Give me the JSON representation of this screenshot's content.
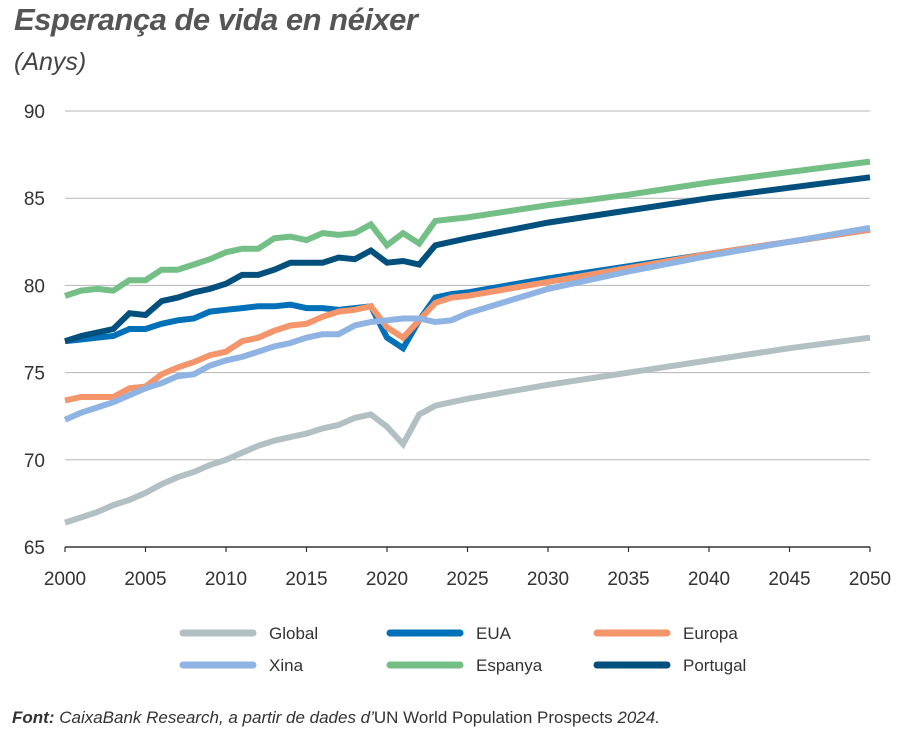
{
  "chart_data": {
    "type": "line",
    "title": "Esperança de vida en néixer",
    "subtitle": "(Anys)",
    "xlabel": "",
    "ylabel": "Anys",
    "xlim": [
      2000,
      2050
    ],
    "ylim": [
      65,
      90
    ],
    "grid": true,
    "legend_position": "bottom",
    "xticks": [
      "2000",
      "2005",
      "2010",
      "2015",
      "2020",
      "2025",
      "2030",
      "2035",
      "2040",
      "2045",
      "2050"
    ],
    "yticks": [
      "65",
      "70",
      "75",
      "80",
      "85",
      "90"
    ],
    "x": [
      2000,
      2001,
      2002,
      2003,
      2004,
      2005,
      2006,
      2007,
      2008,
      2009,
      2010,
      2011,
      2012,
      2013,
      2014,
      2015,
      2016,
      2017,
      2018,
      2019,
      2020,
      2021,
      2022,
      2023,
      2024,
      2025,
      2030,
      2035,
      2040,
      2045,
      2050
    ],
    "series": [
      {
        "name": "Global",
        "color": "#b3c0c3",
        "values": [
          66.4,
          66.7,
          67.0,
          67.4,
          67.7,
          68.1,
          68.6,
          69.0,
          69.3,
          69.7,
          70.0,
          70.4,
          70.8,
          71.1,
          71.3,
          71.5,
          71.8,
          72.0,
          72.4,
          72.6,
          71.9,
          70.9,
          72.6,
          73.1,
          73.3,
          73.5,
          74.3,
          75.0,
          75.7,
          76.4,
          77.0
        ]
      },
      {
        "name": "EUA",
        "color": "#0070b8",
        "values": [
          76.8,
          76.9,
          77.0,
          77.1,
          77.5,
          77.5,
          77.8,
          78.0,
          78.1,
          78.5,
          78.6,
          78.7,
          78.8,
          78.8,
          78.9,
          78.7,
          78.7,
          78.6,
          78.7,
          78.8,
          77.0,
          76.4,
          78.0,
          79.3,
          79.5,
          79.6,
          80.4,
          81.1,
          81.8,
          82.5,
          83.2
        ]
      },
      {
        "name": "Europa",
        "color": "#f4956b",
        "values": [
          73.4,
          73.6,
          73.6,
          73.6,
          74.1,
          74.2,
          74.9,
          75.3,
          75.6,
          76.0,
          76.2,
          76.8,
          77.0,
          77.4,
          77.7,
          77.8,
          78.2,
          78.5,
          78.6,
          78.8,
          77.6,
          77.0,
          78.0,
          79.0,
          79.3,
          79.4,
          80.2,
          81.0,
          81.8,
          82.5,
          83.2
        ]
      },
      {
        "name": "Xina",
        "color": "#8fb3e3",
        "values": [
          72.3,
          72.7,
          73.0,
          73.3,
          73.7,
          74.1,
          74.4,
          74.8,
          74.9,
          75.4,
          75.7,
          75.9,
          76.2,
          76.5,
          76.7,
          77.0,
          77.2,
          77.2,
          77.7,
          77.9,
          78.0,
          78.1,
          78.1,
          77.9,
          78.0,
          78.4,
          79.8,
          80.8,
          81.7,
          82.5,
          83.3
        ]
      },
      {
        "name": "Espanya",
        "color": "#74bf85",
        "values": [
          79.4,
          79.7,
          79.8,
          79.7,
          80.3,
          80.3,
          80.9,
          80.9,
          81.2,
          81.5,
          81.9,
          82.1,
          82.1,
          82.7,
          82.8,
          82.6,
          83.0,
          82.9,
          83.0,
          83.5,
          82.3,
          83.0,
          82.4,
          83.7,
          83.8,
          83.9,
          84.6,
          85.2,
          85.9,
          86.5,
          87.1
        ]
      },
      {
        "name": "Portugal",
        "color": "#004f7d",
        "values": [
          76.8,
          77.1,
          77.3,
          77.5,
          78.4,
          78.3,
          79.1,
          79.3,
          79.6,
          79.8,
          80.1,
          80.6,
          80.6,
          80.9,
          81.3,
          81.3,
          81.3,
          81.6,
          81.5,
          82.0,
          81.3,
          81.4,
          81.2,
          82.3,
          82.5,
          82.7,
          83.6,
          84.3,
          85.0,
          85.6,
          86.2
        ]
      }
    ]
  },
  "source": {
    "label": "Font:",
    "text_italic": "CaixaBank Research, a partir de dades d’",
    "text_regular": "UN World Population Prospects ",
    "year": "2024."
  }
}
